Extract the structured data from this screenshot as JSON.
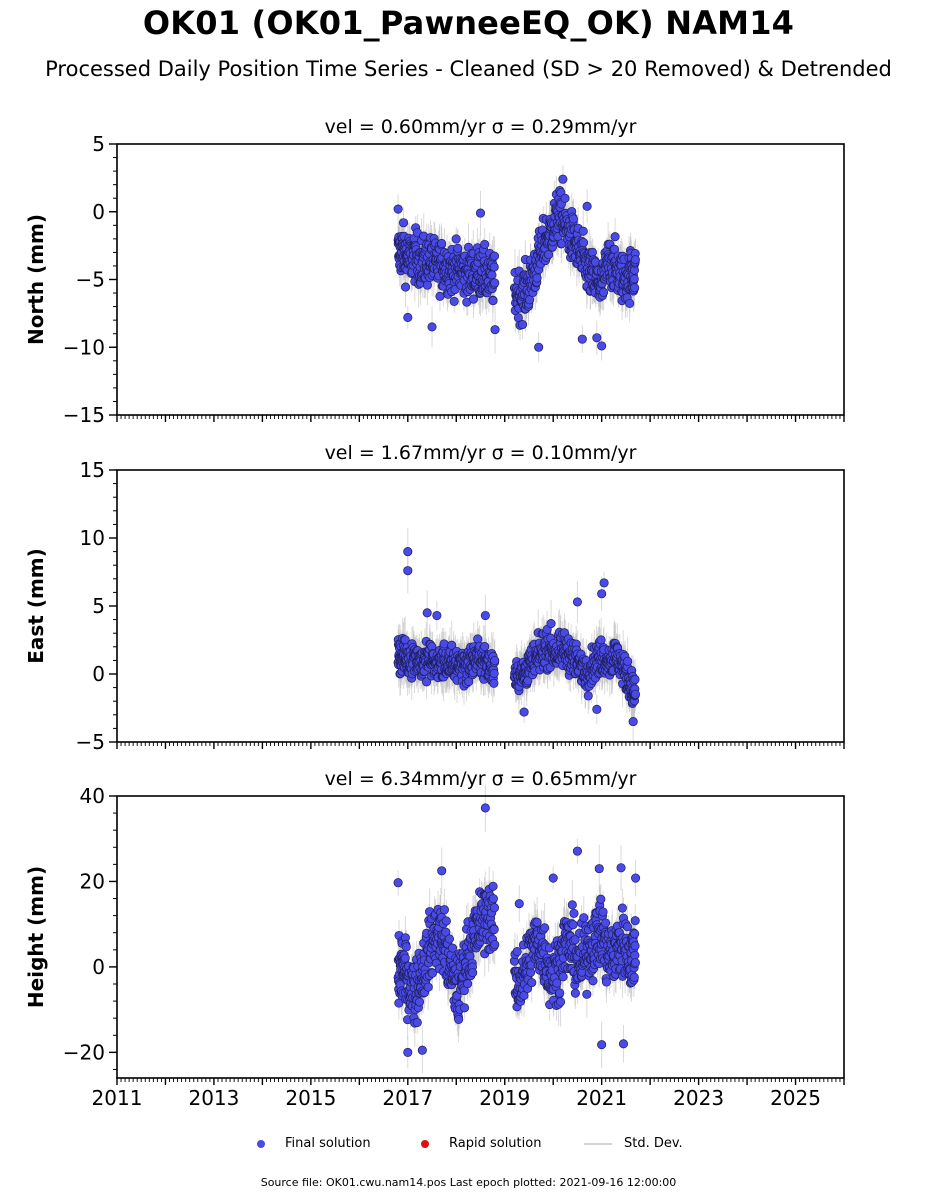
{
  "figure": {
    "title": "OK01 (OK01_PawneeEQ_OK) NAM14",
    "subtitle": "Processed Daily Position Time Series - Cleaned (SD > 20 Removed) & Detrended",
    "footer": "Source file: OK01.cwu.nam14.pos  Last epoch plotted: 2021-09-16 12:00:00"
  },
  "legend": {
    "final_label": "Final solution",
    "rapid_label": "Rapid solution",
    "std_label": "Std. Dev."
  },
  "colors": {
    "final": "#4a4ae8",
    "final_edge": "#1e1e5a",
    "rapid": "#e01010",
    "std": "#bcbcbc"
  },
  "chart_data": [
    {
      "type": "scatter",
      "panel": "north",
      "title": "vel = 0.60mm/yr   σ = 0.29mm/yr",
      "ylabel": "North (mm)",
      "xlim": [
        2011,
        2026
      ],
      "ylim": [
        -15,
        5
      ],
      "yticks": [
        "5",
        "0",
        "−5",
        "−10",
        "−15"
      ],
      "ytick_values": [
        5,
        0,
        -5,
        -10,
        -15
      ],
      "series": [
        {
          "name": "Final solution",
          "x": [
            2016.8,
            2016.9,
            2017.0,
            2017.15,
            2017.3,
            2017.45,
            2017.6,
            2017.75,
            2017.9,
            2018.05,
            2018.2,
            2018.35,
            2018.5,
            2018.65,
            2018.8,
            2019.2,
            2019.35,
            2019.5,
            2019.65,
            2019.8,
            2019.95,
            2020.1,
            2020.25,
            2020.4,
            2020.55,
            2020.7,
            2020.85,
            2021.0,
            2021.15,
            2021.3,
            2021.45,
            2021.6,
            2021.7
          ],
          "y": [
            -3.0,
            -2.8,
            -3.5,
            -3.2,
            -3.8,
            -3.6,
            -4.0,
            -3.9,
            -4.3,
            -4.2,
            -4.6,
            -4.5,
            -4.4,
            -4.8,
            -5.2,
            -5.8,
            -6.2,
            -5.5,
            -4.0,
            -2.5,
            -1.5,
            -0.2,
            -1.0,
            -2.0,
            -3.2,
            -4.2,
            -5.0,
            -5.6,
            -3.6,
            -4.2,
            -5.0,
            -4.6,
            -4.4
          ],
          "spread": 1.3,
          "outliers": [
            [
              2016.8,
              0.2
            ],
            [
              2017.0,
              -7.8
            ],
            [
              2017.5,
              -8.5
            ],
            [
              2018.5,
              -0.1
            ],
            [
              2018.8,
              -8.7
            ],
            [
              2019.7,
              -10.0
            ],
            [
              2020.2,
              2.4
            ],
            [
              2020.6,
              -9.4
            ],
            [
              2020.7,
              0.4
            ],
            [
              2020.9,
              -9.3
            ],
            [
              2021.0,
              -9.9
            ]
          ]
        }
      ]
    },
    {
      "type": "scatter",
      "panel": "east",
      "title": "vel = 1.67mm/yr   σ = 0.10mm/yr",
      "ylabel": "East (mm)",
      "xlim": [
        2011,
        2026
      ],
      "ylim": [
        -5,
        15
      ],
      "yticks": [
        "15",
        "10",
        "5",
        "0",
        "−5"
      ],
      "ytick_values": [
        15,
        10,
        5,
        0,
        -5
      ],
      "series": [
        {
          "name": "Final solution",
          "x": [
            2016.8,
            2016.9,
            2017.0,
            2017.15,
            2017.3,
            2017.45,
            2017.6,
            2017.75,
            2017.9,
            2018.05,
            2018.2,
            2018.35,
            2018.5,
            2018.65,
            2018.8,
            2019.2,
            2019.35,
            2019.5,
            2019.65,
            2019.8,
            2019.95,
            2020.1,
            2020.25,
            2020.4,
            2020.55,
            2020.7,
            2020.85,
            2021.0,
            2021.15,
            2021.3,
            2021.45,
            2021.6,
            2021.7
          ],
          "y": [
            1.2,
            1.4,
            1.0,
            1.3,
            0.8,
            1.1,
            0.7,
            0.9,
            0.5,
            0.8,
            0.6,
            1.0,
            1.2,
            0.6,
            0.4,
            0.3,
            -0.2,
            0.6,
            1.0,
            1.8,
            2.0,
            1.4,
            1.8,
            1.2,
            0.6,
            0.2,
            0.8,
            1.3,
            1.0,
            1.4,
            0.4,
            -0.8,
            -1.6
          ],
          "spread": 0.9,
          "outliers": [
            [
              2017.0,
              9.0
            ],
            [
              2017.0,
              7.6
            ],
            [
              2017.4,
              4.5
            ],
            [
              2017.6,
              4.3
            ],
            [
              2018.6,
              4.3
            ],
            [
              2019.4,
              -2.8
            ],
            [
              2020.5,
              5.3
            ],
            [
              2021.0,
              5.9
            ],
            [
              2021.05,
              6.7
            ],
            [
              2020.9,
              -2.6
            ],
            [
              2021.65,
              -3.5
            ]
          ]
        }
      ]
    },
    {
      "type": "scatter",
      "panel": "up",
      "title": "vel = 6.34mm/yr   σ = 0.65mm/yr",
      "ylabel": "Height (mm)",
      "xlim": [
        2011,
        2026
      ],
      "ylim": [
        -26,
        40
      ],
      "yticks": [
        "40",
        "20",
        "0",
        "−20"
      ],
      "ytick_values": [
        40,
        20,
        0,
        -20
      ],
      "series": [
        {
          "name": "Final solution",
          "x": [
            2016.8,
            2016.9,
            2017.0,
            2017.15,
            2017.3,
            2017.45,
            2017.6,
            2017.75,
            2017.9,
            2018.05,
            2018.2,
            2018.35,
            2018.5,
            2018.65,
            2018.8,
            2019.2,
            2019.35,
            2019.5,
            2019.65,
            2019.8,
            2019.95,
            2020.1,
            2020.25,
            2020.4,
            2020.55,
            2020.7,
            2020.85,
            2021.0,
            2021.15,
            2021.3,
            2021.45,
            2021.6,
            2021.7
          ],
          "y": [
            -2.0,
            0.0,
            -3.0,
            -6.0,
            -1.0,
            4.0,
            8.0,
            6.0,
            -2.0,
            -6.0,
            2.0,
            6.0,
            10.0,
            13.0,
            9.0,
            -2.0,
            -4.0,
            2.0,
            6.0,
            4.0,
            -2.0,
            0.0,
            6.0,
            4.0,
            0.0,
            4.0,
            6.0,
            8.0,
            2.0,
            4.0,
            6.0,
            2.0,
            4.0
          ],
          "spread": 5.5,
          "outliers": [
            [
              2016.8,
              19.7
            ],
            [
              2017.0,
              -20.0
            ],
            [
              2017.3,
              -19.5
            ],
            [
              2017.7,
              22.5
            ],
            [
              2018.6,
              37.2
            ],
            [
              2019.3,
              14.8
            ],
            [
              2020.0,
              20.8
            ],
            [
              2020.5,
              27.1
            ],
            [
              2020.95,
              23.0
            ],
            [
              2021.0,
              -18.2
            ],
            [
              2021.4,
              23.2
            ],
            [
              2021.45,
              -18.0
            ],
            [
              2021.7,
              20.8
            ]
          ]
        }
      ]
    }
  ],
  "xaxis": {
    "tick_labels": [
      "2011",
      "2013",
      "2015",
      "2017",
      "2019",
      "2021",
      "2023",
      "2025"
    ],
    "tick_values": [
      2011,
      2013,
      2015,
      2017,
      2019,
      2021,
      2023,
      2025
    ]
  }
}
